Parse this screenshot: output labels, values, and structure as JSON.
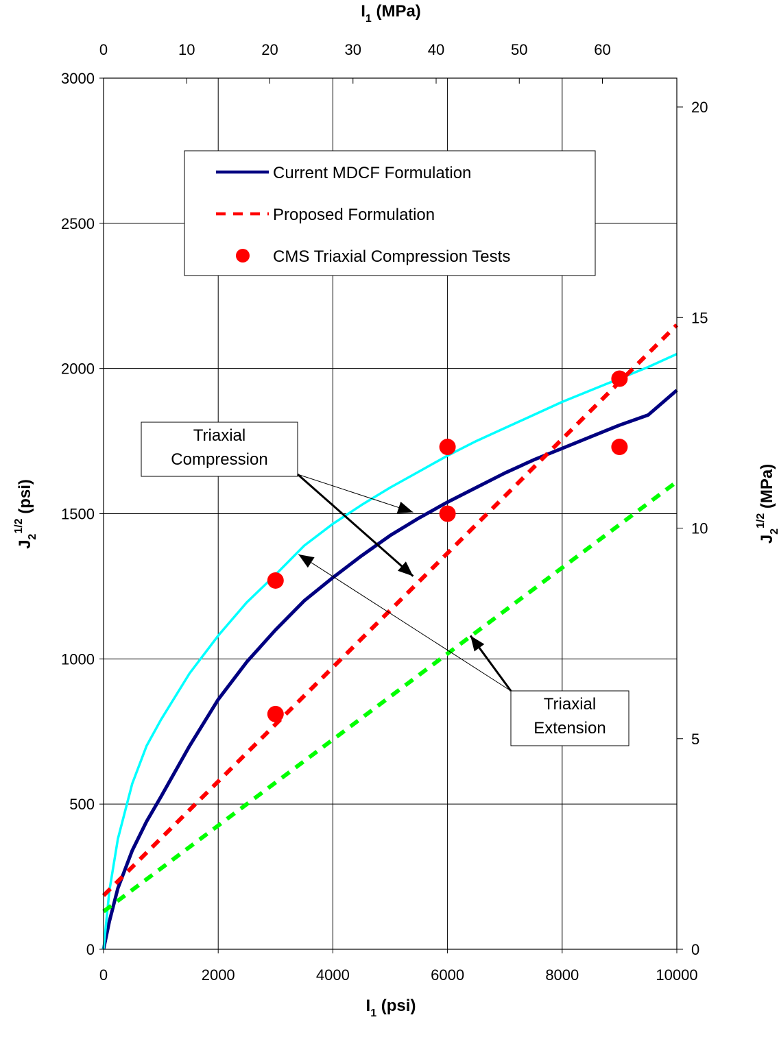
{
  "chart_data": {
    "type": "line",
    "bottom_axis": {
      "label_main": "I",
      "label_sub": "1",
      "label_unit": "(psi)",
      "range": [
        0,
        10000
      ],
      "ticks": [
        0,
        2000,
        4000,
        6000,
        8000,
        10000
      ],
      "tick_labels": [
        "0",
        "2000",
        "4000",
        "6000",
        "8000",
        "10000"
      ]
    },
    "top_axis": {
      "label_main": "I",
      "label_sub": "1",
      "label_unit": "(MPa)",
      "ticks": [
        0,
        10,
        20,
        30,
        40,
        50,
        60
      ],
      "tick_labels": [
        "0",
        "10",
        "20",
        "30",
        "40",
        "50",
        "60"
      ]
    },
    "left_axis": {
      "label_main": "J",
      "label_sub": "2",
      "label_sup": "1/2",
      "label_unit": "(psi)",
      "range": [
        0,
        3000
      ],
      "ticks": [
        0,
        500,
        1000,
        1500,
        2000,
        2500,
        3000
      ],
      "tick_labels": [
        "0",
        "500",
        "1000",
        "1500",
        "2000",
        "2500",
        "3000"
      ]
    },
    "right_axis": {
      "label_main": "J",
      "label_sub": "2",
      "label_sup": "1/2",
      "label_unit": "(MPa)",
      "ticks": [
        0,
        5,
        10,
        15,
        20
      ],
      "tick_labels": [
        "0",
        "5",
        "10",
        "15",
        "20"
      ]
    },
    "grid": true,
    "legend": {
      "placement": "top-center",
      "entries": [
        "Current MDCF Formulation",
        "Proposed Formulation",
        "CMS Triaxial Compression Tests"
      ]
    },
    "series": [
      {
        "name": "Current MDCF Formulation",
        "style": "solid",
        "color": "#000080",
        "x": [
          0,
          100,
          250,
          500,
          750,
          1000,
          1500,
          2000,
          2500,
          3000,
          3500,
          4000,
          4500,
          5000,
          5500,
          6000,
          6500,
          7000,
          7500,
          8000,
          8500,
          9000,
          9500,
          10000
        ],
        "y": [
          0,
          95,
          210,
          340,
          440,
          525,
          700,
          860,
          990,
          1100,
          1200,
          1280,
          1355,
          1425,
          1485,
          1540,
          1590,
          1640,
          1685,
          1725,
          1765,
          1805,
          1840,
          1925
        ]
      },
      {
        "name": "",
        "style": "solid",
        "color": "#00ffff",
        "x": [
          0,
          100,
          250,
          500,
          750,
          1000,
          1500,
          2000,
          2500,
          3000,
          3500,
          4000,
          4500,
          5000,
          5500,
          6000,
          6500,
          7000,
          7500,
          8000,
          8500,
          9000,
          9500,
          10000
        ],
        "y": [
          0,
          200,
          380,
          570,
          700,
          790,
          950,
          1080,
          1195,
          1290,
          1390,
          1465,
          1530,
          1590,
          1645,
          1700,
          1750,
          1795,
          1840,
          1885,
          1925,
          1965,
          2005,
          2050
        ]
      },
      {
        "name": "Proposed Formulation",
        "style": "dashed",
        "color": "#ff0000",
        "x": [
          0,
          10000
        ],
        "y": [
          185,
          2150
        ]
      },
      {
        "name": "",
        "style": "dashed",
        "color": "#00ff00",
        "x": [
          0,
          10000
        ],
        "y": [
          130,
          1610
        ]
      },
      {
        "name": "CMS Triaxial Compression Tests",
        "style": "markers",
        "color": "#ff0000",
        "x": [
          3000,
          3000,
          6000,
          6000,
          9000,
          9000
        ],
        "y": [
          1270,
          810,
          1730,
          1500,
          1965,
          1730
        ]
      }
    ],
    "annotations": [
      {
        "text_lines": [
          "Triaxial",
          "Compression"
        ],
        "arrow_targets": [
          [
            5400,
            1285
          ],
          [
            5400,
            1505
          ]
        ]
      },
      {
        "text_lines": [
          "Triaxial",
          "Extension"
        ],
        "arrow_targets": [
          [
            3400,
            1360
          ],
          [
            6400,
            1080
          ]
        ]
      }
    ]
  }
}
